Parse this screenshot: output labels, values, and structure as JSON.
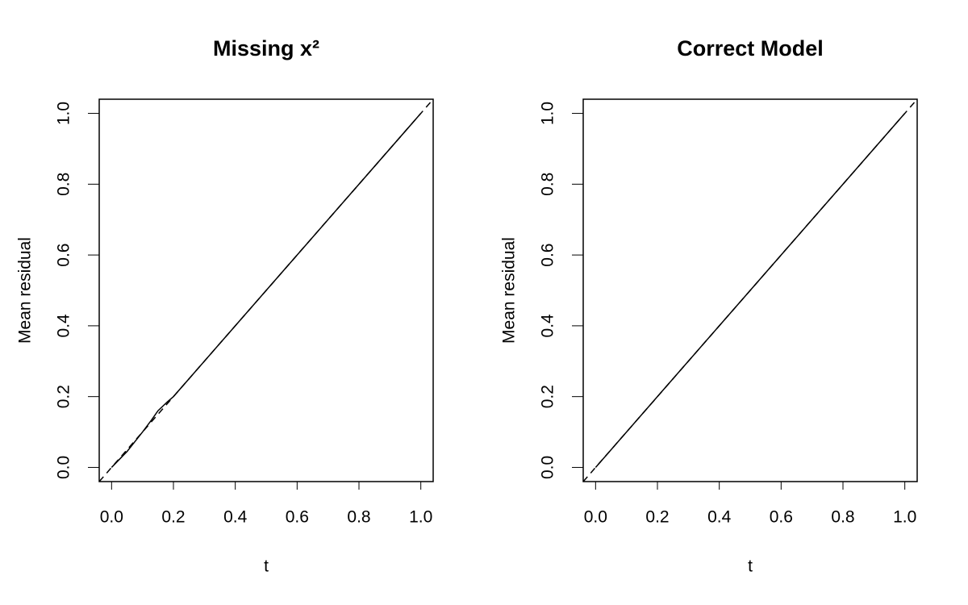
{
  "chart_data": [
    {
      "type": "line",
      "title": "Missing x²",
      "xlabel": "t",
      "ylabel": "Mean residual",
      "xlim": [
        -0.04,
        1.04
      ],
      "ylim": [
        -0.04,
        1.04
      ],
      "xticks": [
        {
          "value": 0,
          "label": "0.0"
        },
        0.2,
        0.4,
        0.6,
        0.8,
        {
          "value": 1,
          "label": "1.0"
        }
      ],
      "yticks": [
        {
          "value": 0,
          "label": "0.0"
        },
        0.2,
        0.4,
        0.6,
        0.8,
        {
          "value": 1,
          "label": "1.0"
        }
      ],
      "series": [
        {
          "color": "#000000",
          "style": "solid",
          "x": [
            0,
            0.05,
            0.1,
            0.13,
            0.15,
            0.18,
            0.2,
            0.4,
            0.6,
            0.8,
            1.0
          ],
          "values": [
            0,
            0.045,
            0.1,
            0.135,
            0.16,
            0.185,
            0.2,
            0.4,
            0.6,
            0.8,
            1.0
          ]
        },
        {
          "color": "#000000",
          "style": "dashed",
          "x": [
            -0.04,
            1.04
          ],
          "values": [
            -0.04,
            1.04
          ]
        }
      ]
    },
    {
      "type": "line",
      "title": "Correct Model",
      "xlabel": "t",
      "ylabel": "Mean residual",
      "xlim": [
        -0.04,
        1.04
      ],
      "ylim": [
        -0.04,
        1.04
      ],
      "xticks": [
        {
          "value": 0,
          "label": "0.0"
        },
        0.2,
        0.4,
        0.6,
        0.8,
        {
          "value": 1,
          "label": "1.0"
        }
      ],
      "yticks": [
        {
          "value": 0,
          "label": "0.0"
        },
        0.2,
        0.4,
        0.6,
        0.8,
        {
          "value": 1,
          "label": "1.0"
        }
      ],
      "series": [
        {
          "color": "#000000",
          "style": "solid",
          "x": [
            0,
            0.2,
            0.4,
            0.6,
            0.8,
            1.0
          ],
          "values": [
            0,
            0.2,
            0.4,
            0.6,
            0.8,
            1.0
          ]
        },
        {
          "color": "#000000",
          "style": "dashed",
          "x": [
            -0.04,
            1.04
          ],
          "values": [
            -0.04,
            1.04
          ]
        }
      ]
    }
  ]
}
